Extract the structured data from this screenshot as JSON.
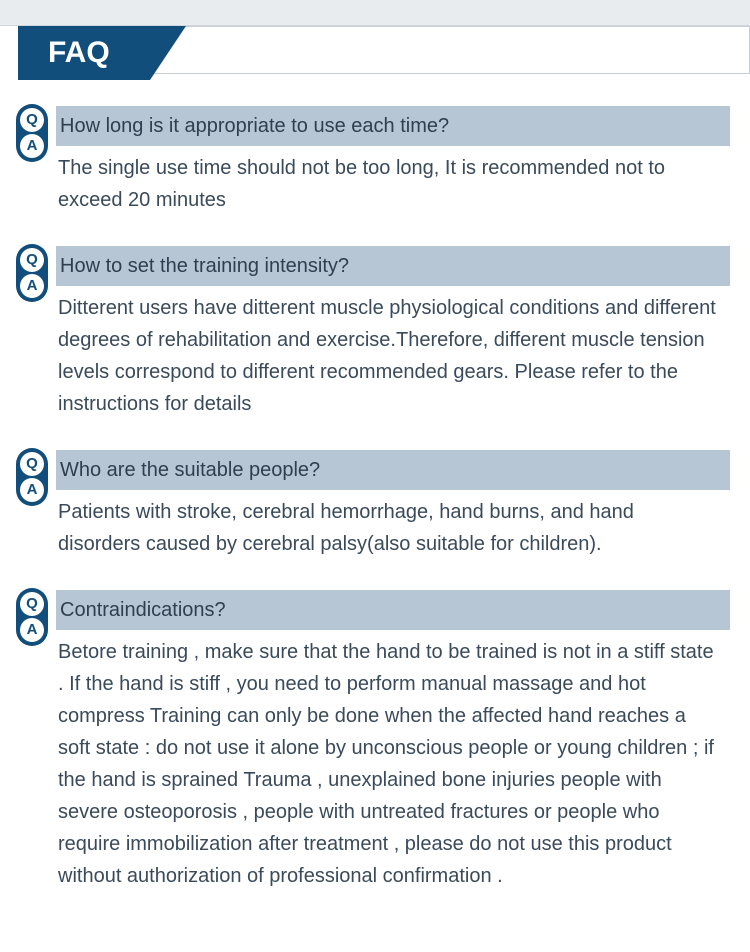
{
  "header": {
    "title": "FAQ",
    "tab_bg": "#124e7c",
    "tab_text_color": "#ffffff"
  },
  "colors": {
    "q_bar_bg": "#b6c6d4",
    "badge_bg": "#124e7c",
    "badge_circle_bg": "#ffffff",
    "badge_text": "#124e7c",
    "body_text": "#3a4a5a"
  },
  "badge": {
    "q": "Q",
    "a": "A"
  },
  "items": [
    {
      "question": "How long is it appropriate to use each time?",
      "answer": "The single use time should not be too long, It is recommended not to exceed 20 minutes"
    },
    {
      "question": "How to set the training intensity?",
      "answer": "Ditterent users have ditterent muscle physiological conditions and different degrees of rehabilitation and exercise.Therefore, different muscle tension levels correspond to different recommended gears. Please refer to the instructions for details"
    },
    {
      "question": "Who are the suitable people?",
      "answer": "Patients with stroke, cerebral hemorrhage, hand burns, and hand disorders caused by cerebral palsy(also suitable for children)."
    },
    {
      "question": "Contraindications?",
      "answer": "Betore training , make sure that the hand to be trained is not in a stiff state . If the hand is stiff , you need to perform manual massage and hot compress Training can only be done when the affected hand reaches a soft state : do not use it alone by unconscious people or young children ; if the hand is sprained Trauma , unexplained bone injuries people with severe osteoporosis , people with untreated fractures or people who require immobilization after treatment , please do not use this product without authorization of professional confirmation ."
    }
  ]
}
